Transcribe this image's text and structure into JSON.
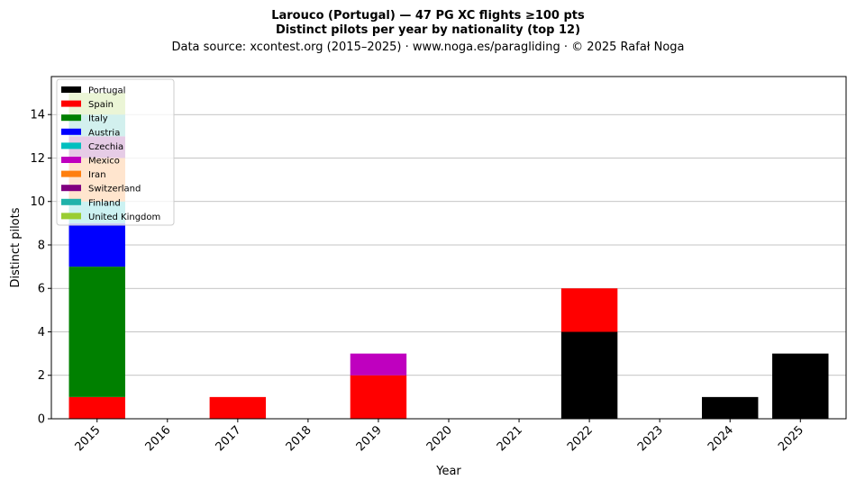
{
  "chart_data": {
    "type": "bar",
    "stacked": true,
    "title": "Larouco (Portugal)  —  47 PG XC flights ≥100 pts",
    "subtitle": "Distinct pilots per year by nationality (top 12)",
    "source": "Data source: xcontest.org (2015–2025)  ·  www.noga.es/paragliding  ·  © 2025 Rafał Noga",
    "xlabel": "Year",
    "ylabel": "Distinct pilots",
    "categories": [
      "2015",
      "2016",
      "2017",
      "2018",
      "2019",
      "2020",
      "2021",
      "2022",
      "2023",
      "2024",
      "2025"
    ],
    "ylim": [
      0,
      15.75
    ],
    "yticks": [
      0,
      2,
      4,
      6,
      8,
      10,
      12,
      14
    ],
    "grid": "y",
    "legend_position": "top-left",
    "series": [
      {
        "name": "Portugal",
        "color": "#000000",
        "values": [
          0,
          0,
          0,
          0,
          0,
          0,
          0,
          4,
          0,
          1,
          3
        ]
      },
      {
        "name": "Spain",
        "color": "#ff0000",
        "values": [
          1,
          0,
          1,
          0,
          2,
          0,
          0,
          2,
          0,
          0,
          0
        ]
      },
      {
        "name": "Italy",
        "color": "#008000",
        "values": [
          6,
          0,
          0,
          0,
          0,
          0,
          0,
          0,
          0,
          0,
          0
        ]
      },
      {
        "name": "Austria",
        "color": "#0000ff",
        "values": [
          2,
          0,
          0,
          0,
          0,
          0,
          0,
          0,
          0,
          0,
          0
        ]
      },
      {
        "name": "Czechia",
        "color": "#00bfbf",
        "values": [
          1,
          0,
          0,
          0,
          0,
          0,
          0,
          0,
          0,
          0,
          0
        ]
      },
      {
        "name": "Mexico",
        "color": "#bf00bf",
        "values": [
          0,
          0,
          0,
          0,
          1,
          0,
          0,
          0,
          0,
          0,
          0
        ]
      },
      {
        "name": "Iran",
        "color": "#ff7f0e",
        "values": [
          2,
          0,
          0,
          0,
          0,
          0,
          0,
          0,
          0,
          0,
          0
        ]
      },
      {
        "name": "Switzerland",
        "color": "#800080",
        "values": [
          1,
          0,
          0,
          0,
          0,
          0,
          0,
          0,
          0,
          0,
          0
        ]
      },
      {
        "name": "Finland",
        "color": "#20b2aa",
        "values": [
          1,
          0,
          0,
          0,
          0,
          0,
          0,
          0,
          0,
          0,
          0
        ]
      },
      {
        "name": "United Kingdom",
        "color": "#9acd32",
        "values": [
          1,
          0,
          0,
          0,
          0,
          0,
          0,
          0,
          0,
          0,
          0
        ]
      }
    ]
  }
}
